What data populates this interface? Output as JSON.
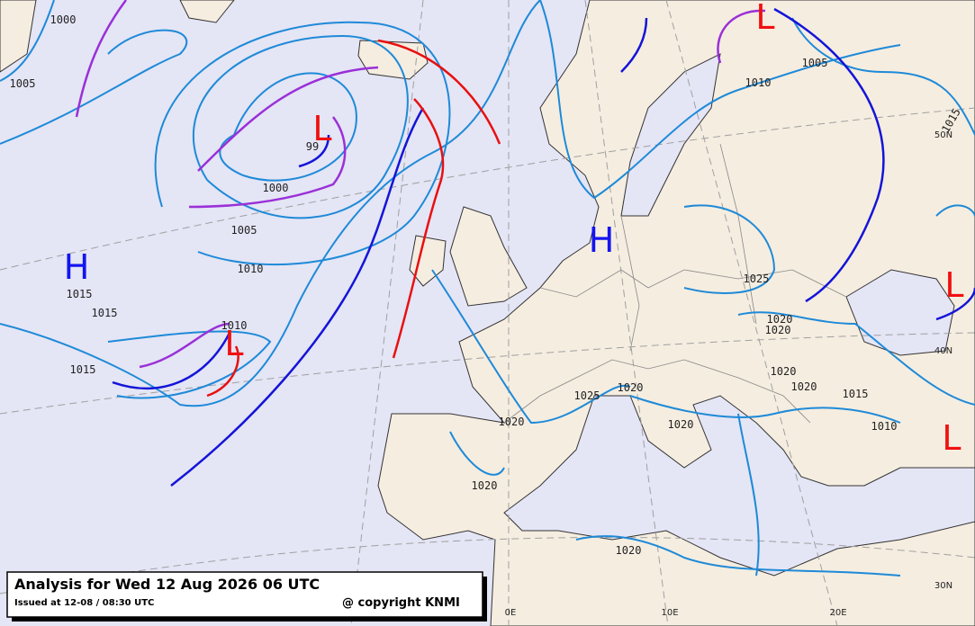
{
  "title": "Analysis for Wed 12 Aug 2026 06 UTC",
  "issued": "Issued at 12-08 / 08:30 UTC",
  "copyright": "@ copyright KNMI",
  "lows": [
    "L",
    "L",
    "L",
    "L",
    "L"
  ],
  "highs": [
    "H",
    "H"
  ],
  "isobar_labels": [
    1000,
    1005,
    1005,
    1010,
    1015,
    99,
    1000,
    1005,
    1010,
    1015,
    1015,
    1015,
    1010,
    1025,
    1020,
    1020,
    1020,
    1020,
    1015,
    1010,
    1025,
    1020,
    1020,
    1020,
    1020,
    1020
  ],
  "latitude_labels": [
    "50N",
    "40N",
    "30N"
  ],
  "longitude_labels": [
    "0E",
    "10E",
    "20E"
  ]
}
